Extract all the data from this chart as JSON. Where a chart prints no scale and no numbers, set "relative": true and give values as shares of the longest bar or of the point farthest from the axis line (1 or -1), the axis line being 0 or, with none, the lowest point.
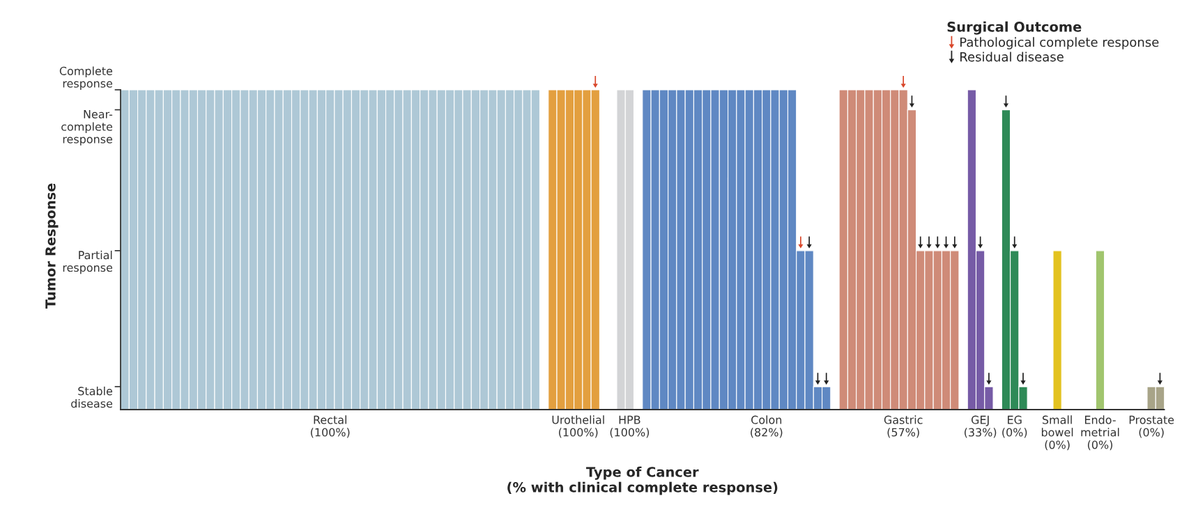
{
  "chart_data": {
    "type": "bar",
    "relative": true,
    "xlabel": "Type of Cancer\n(% with clinical complete response)",
    "ylabel": "Tumor Response",
    "legend_title": "Surgical Outcome",
    "legend": "top right",
    "annotations": [
      "Stable\ndisease",
      "Partial\nresponse",
      "Near-\ncomplete\nresponse",
      "Complete\nresponse"
    ],
    "categories": [
      null,
      null,
      null,
      null,
      null,
      null,
      null,
      null,
      null,
      null,
      null,
      null,
      null,
      null,
      null,
      null,
      null,
      null,
      null,
      null,
      null,
      null,
      null,
      null,
      "Rectal\n(100%)",
      null,
      null,
      null,
      null,
      null,
      null,
      null,
      null,
      null,
      null,
      null,
      null,
      null,
      null,
      null,
      null,
      null,
      null,
      null,
      null,
      null,
      null,
      null,
      null,
      null,
      null,
      null,
      null,
      "Urothelial\n(100%)",
      null,
      null,
      null,
      null,
      null,
      "HPB\n(100%)",
      null,
      null,
      null,
      null,
      null,
      null,
      null,
      null,
      null,
      null,
      null,
      null,
      null,
      null,
      null,
      "Colon\n(82%)",
      null,
      null,
      null,
      null,
      null,
      null,
      null,
      null,
      null,
      null,
      null,
      null,
      null,
      null,
      null,
      "Gastric\n(57%)",
      null,
      null,
      null,
      null,
      null,
      null,
      null,
      null,
      "GEJ\n(33%)",
      null,
      null,
      null,
      "EG\n(0%)",
      null,
      null,
      null,
      null,
      "Small\nbowel\n(0%)",
      null,
      null,
      null,
      null,
      "Endo-\nmetrial\n(0%)",
      null,
      null,
      null,
      null,
      null,
      "Prostate\n(0%)",
      null
    ],
    "series": [
      {
        "values": [
          0.976,
          0.976,
          0.976,
          0.976,
          0.976,
          0.976,
          0.976,
          0.976,
          0.976,
          0.976,
          0.976,
          0.976,
          0.976,
          0.976,
          0.976,
          0.976,
          0.976,
          0.976,
          0.976,
          0.976,
          0.976,
          0.976,
          0.976,
          0.976,
          0.976,
          0.976,
          0.976,
          0.976,
          0.976,
          0.976,
          0.976,
          0.976,
          0.976,
          0.976,
          0.976,
          0.976,
          0.976,
          0.976,
          0.976,
          0.976,
          0.976,
          0.976,
          0.976,
          0.976,
          0.976,
          0.976,
          0.976,
          0.976,
          0.976,
          null,
          0.976,
          0.976,
          0.976,
          0.976,
          0.976,
          0.976,
          null,
          null,
          0.976,
          0.976,
          null,
          0.976,
          0.976,
          0.976,
          0.976,
          0.976,
          0.976,
          0.976,
          0.976,
          0.976,
          0.976,
          0.976,
          0.976,
          0.976,
          0.976,
          0.976,
          0.976,
          0.976,
          0.976,
          0.485,
          0.485,
          0.07,
          0.07,
          null,
          0.976,
          0.976,
          0.976,
          0.976,
          0.976,
          0.976,
          0.976,
          0.976,
          0.915,
          0.485,
          0.485,
          0.485,
          0.485,
          0.485,
          null,
          0.976,
          0.485,
          0.07,
          null,
          0.915,
          0.485,
          0.07,
          null,
          null,
          null,
          0.485,
          null,
          null,
          null,
          null,
          0.485,
          null,
          null,
          null,
          null,
          null,
          0.07,
          0.07
        ],
        "colors": [
          "#aec8d6",
          "#aec8d6",
          "#aec8d6",
          "#aec8d6",
          "#aec8d6",
          "#aec8d6",
          "#aec8d6",
          "#aec8d6",
          "#aec8d6",
          "#aec8d6",
          "#aec8d6",
          "#aec8d6",
          "#aec8d6",
          "#aec8d6",
          "#aec8d6",
          "#aec8d6",
          "#aec8d6",
          "#aec8d6",
          "#aec8d6",
          "#aec8d6",
          "#aec8d6",
          "#aec8d6",
          "#aec8d6",
          "#aec8d6",
          "#aec8d6",
          "#aec8d6",
          "#aec8d6",
          "#aec8d6",
          "#aec8d6",
          "#aec8d6",
          "#aec8d6",
          "#aec8d6",
          "#aec8d6",
          "#aec8d6",
          "#aec8d6",
          "#aec8d6",
          "#aec8d6",
          "#aec8d6",
          "#aec8d6",
          "#aec8d6",
          "#aec8d6",
          "#aec8d6",
          "#aec8d6",
          "#aec8d6",
          "#aec8d6",
          "#aec8d6",
          "#aec8d6",
          "#aec8d6",
          "#aec8d6",
          null,
          "#e39f3f",
          "#e39f3f",
          "#e39f3f",
          "#e39f3f",
          "#e39f3f",
          "#e39f3f",
          null,
          null,
          "#d3d4d6",
          "#d3d4d6",
          null,
          "#5f88c3",
          "#5f88c3",
          "#5f88c3",
          "#5f88c3",
          "#5f88c3",
          "#5f88c3",
          "#5f88c3",
          "#5f88c3",
          "#5f88c3",
          "#5f88c3",
          "#5f88c3",
          "#5f88c3",
          "#5f88c3",
          "#5f88c3",
          "#5f88c3",
          "#5f88c3",
          "#5f88c3",
          "#5f88c3",
          "#5f88c3",
          "#5f88c3",
          "#5f88c3",
          "#5f88c3",
          null,
          "#cf8b78",
          "#cf8b78",
          "#cf8b78",
          "#cf8b78",
          "#cf8b78",
          "#cf8b78",
          "#cf8b78",
          "#cf8b78",
          "#cf8b78",
          "#cf8b78",
          "#cf8b78",
          "#cf8b78",
          "#cf8b78",
          "#cf8b78",
          null,
          "#765ba6",
          "#765ba6",
          "#765ba6",
          null,
          "#2e8a57",
          "#2e8a57",
          "#2e8a57",
          null,
          null,
          null,
          "#e3c21f",
          null,
          null,
          null,
          null,
          "#a1c56e",
          null,
          null,
          null,
          null,
          null,
          "#a8a488",
          "#a8a488"
        ]
      },
      {
        "type": "scatter",
        "name": "Pathological complete response",
        "color": "#d9472b",
        "values": [
          null,
          null,
          null,
          null,
          null,
          null,
          null,
          null,
          null,
          null,
          null,
          null,
          null,
          null,
          null,
          null,
          null,
          null,
          null,
          null,
          null,
          null,
          null,
          null,
          null,
          null,
          null,
          null,
          null,
          null,
          null,
          null,
          null,
          null,
          null,
          null,
          null,
          null,
          null,
          null,
          null,
          null,
          null,
          null,
          null,
          null,
          null,
          null,
          null,
          null,
          null,
          null,
          null,
          null,
          null,
          1,
          null,
          null,
          null,
          null,
          null,
          null,
          null,
          null,
          null,
          null,
          null,
          null,
          null,
          null,
          null,
          null,
          null,
          null,
          null,
          null,
          null,
          null,
          null,
          0.51,
          null,
          null,
          null,
          null,
          null,
          null,
          null,
          null,
          null,
          null,
          null,
          1,
          null,
          null,
          null,
          null,
          null,
          null,
          null,
          null,
          null,
          null,
          null,
          null,
          null,
          null,
          null,
          null,
          null,
          null,
          null,
          null,
          null,
          null,
          null,
          null,
          null,
          null,
          null,
          null,
          null,
          null
        ]
      },
      {
        "type": "scatter",
        "name": "Residual disease",
        "color": "#222222",
        "values": [
          null,
          null,
          null,
          null,
          null,
          null,
          null,
          null,
          null,
          null,
          null,
          null,
          null,
          null,
          null,
          null,
          null,
          null,
          null,
          null,
          null,
          null,
          null,
          null,
          null,
          null,
          null,
          null,
          null,
          null,
          null,
          null,
          null,
          null,
          null,
          null,
          null,
          null,
          null,
          null,
          null,
          null,
          null,
          null,
          null,
          null,
          null,
          null,
          null,
          null,
          null,
          null,
          null,
          null,
          null,
          null,
          null,
          null,
          null,
          null,
          null,
          null,
          null,
          null,
          null,
          null,
          null,
          null,
          null,
          null,
          null,
          null,
          null,
          null,
          null,
          null,
          null,
          null,
          null,
          null,
          0.51,
          0.094,
          0.094,
          null,
          null,
          null,
          null,
          null,
          null,
          null,
          null,
          null,
          0.94,
          0.51,
          0.51,
          0.51,
          0.51,
          0.51,
          null,
          null,
          0.51,
          0.094,
          null,
          0.94,
          0.51,
          0.094,
          null,
          null,
          null,
          null,
          null,
          null,
          null,
          null,
          null,
          null,
          null,
          null,
          null,
          null,
          null,
          0.094
        ]
      }
    ]
  }
}
